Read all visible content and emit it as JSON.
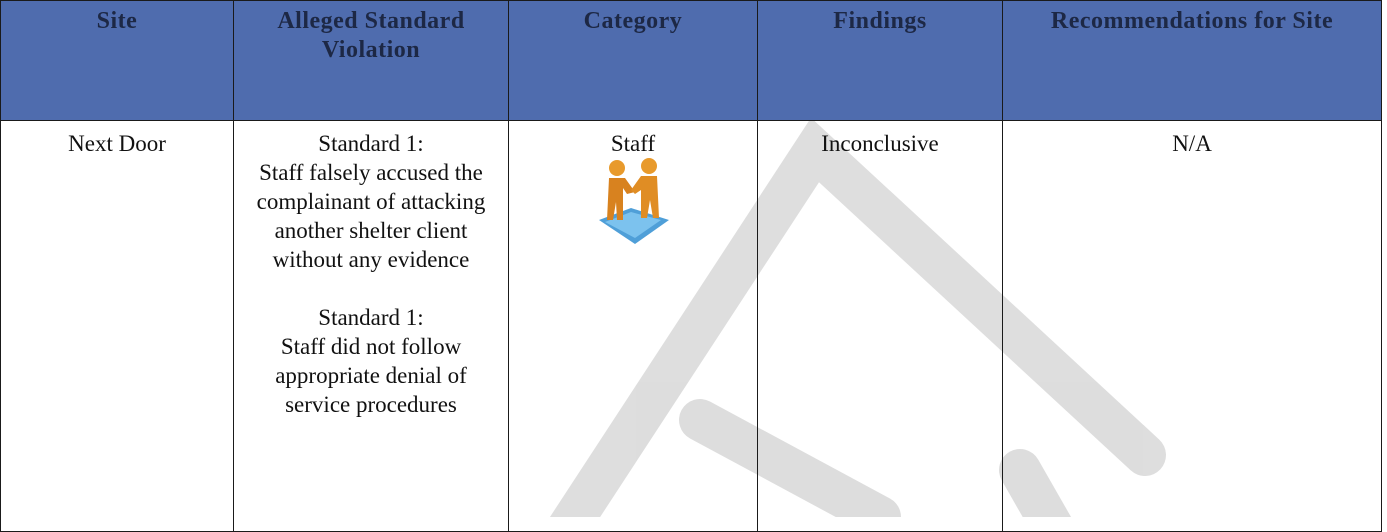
{
  "table": {
    "headers": [
      "Site",
      "Alleged Standard Violation",
      "Category",
      "Findings",
      "Recommendations for Site"
    ],
    "rows": [
      {
        "site": "Next Door",
        "violations": [
          {
            "standard": "Standard 1:",
            "text": "Staff falsely accused the complainant of attacking another shelter client without any evidence"
          },
          {
            "standard": "Standard 1:",
            "text": "Staff did not follow appropriate denial of service procedures"
          }
        ],
        "category": "Staff",
        "findings": "Inconclusive",
        "recommendations": "N/A"
      }
    ]
  }
}
